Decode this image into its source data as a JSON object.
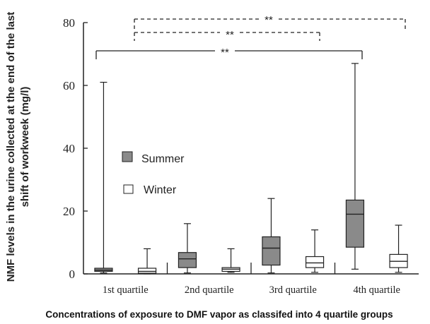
{
  "chart_data": {
    "type": "box",
    "ylabel_line1": "NMF levels in the urine collected at the end of the last",
    "ylabel_line2": "shift of workweek (mg/l)",
    "xlabel": "Concentrations of exposure to DMF vapor as classifed into 4 quartile groups",
    "ylim": [
      0,
      80
    ],
    "yticks": [
      "0",
      "20",
      "40",
      "60",
      "80"
    ],
    "categories": [
      "1st quartile",
      "2nd quartile",
      "3rd quartile",
      "4th quartile"
    ],
    "series": [
      {
        "name": "Summer",
        "color": "#8a8a8a",
        "boxes": [
          {
            "min": 0.3,
            "q1": 0.8,
            "median": 1.2,
            "q3": 1.8,
            "max": 61
          },
          {
            "min": 0.3,
            "q1": 2.0,
            "median": 4.8,
            "q3": 6.8,
            "max": 16
          },
          {
            "min": 0.3,
            "q1": 2.8,
            "median": 8.2,
            "q3": 11.8,
            "max": 24
          },
          {
            "min": 1.5,
            "q1": 8.5,
            "median": 19,
            "q3": 23.5,
            "max": 67
          }
        ]
      },
      {
        "name": "Winter",
        "color": "#ffffff",
        "boxes": [
          {
            "min": 0,
            "q1": 0.2,
            "median": 0.8,
            "q3": 1.8,
            "max": 8
          },
          {
            "min": 0.5,
            "q1": 0.8,
            "median": 1.5,
            "q3": 2.0,
            "max": 8
          },
          {
            "min": 0.5,
            "q1": 2.0,
            "median": 3.5,
            "q3": 5.5,
            "max": 14
          },
          {
            "min": 0.5,
            "q1": 2.0,
            "median": 4.0,
            "q3": 6.2,
            "max": 15.5
          }
        ]
      }
    ],
    "legend": {
      "position": "center-left"
    },
    "significance": [
      {
        "label": "**",
        "style": "dashed",
        "from": "1st quartile Winter",
        "to": "4th quartile Winter",
        "level": 80
      },
      {
        "label": "**",
        "style": "dashed",
        "from": "1st quartile Winter",
        "to": "3rd quartile Summer",
        "level": 76
      },
      {
        "label": "**",
        "style": "solid",
        "from": "1st quartile Summer",
        "to": "4th quartile Summer",
        "level": 71.5
      }
    ]
  }
}
